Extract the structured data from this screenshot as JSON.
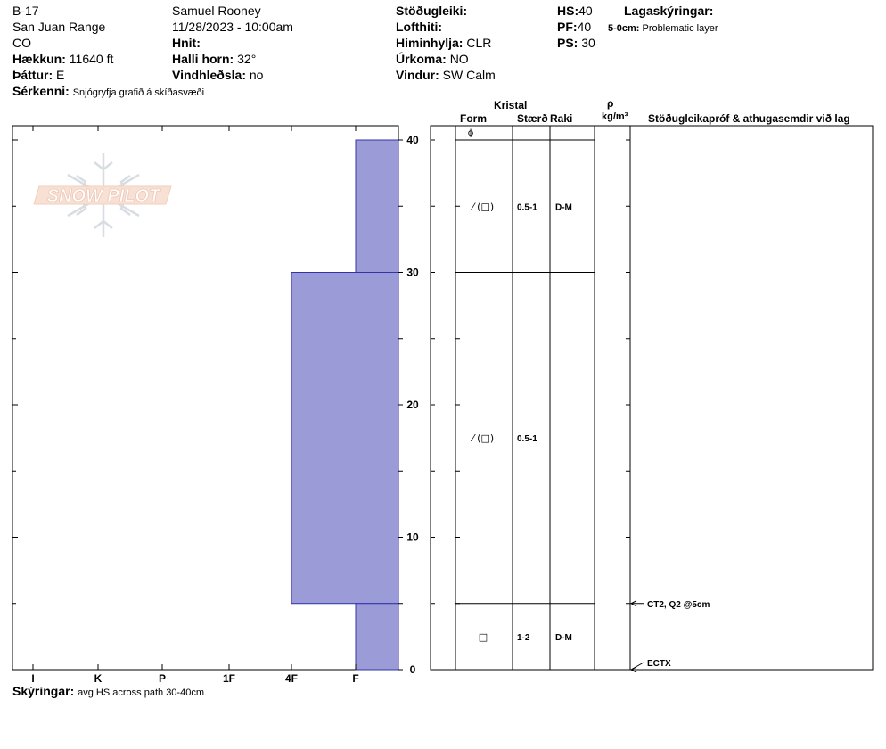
{
  "header": {
    "id": "B-17",
    "range": "San Juan Range",
    "state": "CO",
    "elevation_label": "Hækkun:",
    "elevation_value": "11640 ft",
    "aspect_label": "Þáttur:",
    "aspect_value": "E",
    "features_label": "Sérkenni:",
    "features_value": "Snjógryfja grafið á skíðasvæði",
    "observer": "Samuel  Rooney",
    "datetime": "11/28/2023 - 10:00am",
    "coords_label": "Hnit:",
    "slope_label": "Halli horn:",
    "slope_value": "32°",
    "wind_loading_label": "Vindhleðsla:",
    "wind_loading_value": "no",
    "stability_label": "Stöðugleiki:",
    "air_temp_label": "Lofthiti:",
    "sky_label": "Himinhylja:",
    "sky_value": "CLR",
    "precip_label": "Úrkoma:",
    "precip_value": "NO",
    "wind_label": "Vindur:",
    "wind_value": "SW Calm",
    "hs_label": "HS:",
    "hs_value": "40",
    "pf_label": "PF:",
    "pf_value": "40",
    "ps_label": "PS:",
    "ps_value": "30",
    "legend_label": "Lagaskýringar:",
    "legend_item_key": "5-0cm:",
    "legend_item_value": "Problematic layer"
  },
  "logo_text": "SNOW PILOT",
  "columns": {
    "crystal": "Kristal",
    "form": "Form",
    "size": "Stærð",
    "moisture": "Raki",
    "rho": "ρ",
    "density_unit": "kg/m³",
    "stability": "Stöðugleikapróf & athugasemdir við lag"
  },
  "footer": {
    "comments_label": "Skýringar:",
    "comments_value": "avg HS across path 30-40cm"
  },
  "colors": {
    "hardness_fill": "#9b9bd7",
    "hardness_stroke": "#3333aa"
  },
  "chart_data": {
    "type": "bar",
    "orientation": "horizontal",
    "depth_axis": {
      "min": 0,
      "max": 40,
      "ticks": [
        "0",
        "10",
        "20",
        "30",
        "40"
      ]
    },
    "hardness_axis": {
      "ticks": [
        "I",
        "K",
        "P",
        "1F",
        "4F",
        "F"
      ]
    },
    "layers": [
      {
        "top": 40,
        "bottom": 30,
        "hardness": "F",
        "form": "⁄ (□)",
        "size": "0.5-1",
        "moisture": "D-M"
      },
      {
        "top": 30,
        "bottom": 5,
        "hardness": "4F",
        "form": "⁄ (□)",
        "size": "0.5-1",
        "moisture": ""
      },
      {
        "top": 5,
        "bottom": 0,
        "hardness": "F",
        "form": "□",
        "size": "1-2",
        "moisture": "D-M"
      }
    ],
    "surface_form": "ϕ",
    "tests": [
      {
        "depth": 5,
        "label": "CT2, Q2 @5cm"
      },
      {
        "depth": 0,
        "label": "ECTX"
      }
    ]
  }
}
